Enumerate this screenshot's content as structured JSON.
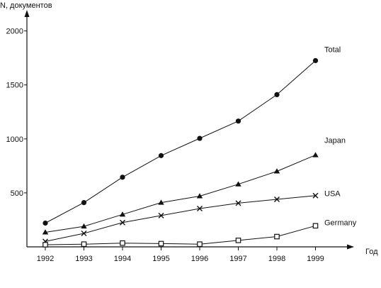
{
  "chart_data": {
    "type": "line",
    "title": "",
    "ylabel": "N, документов",
    "xlabel": "Год",
    "x": [
      "1992",
      "1993",
      "1994",
      "1995",
      "1996",
      "1997",
      "1998",
      "1999"
    ],
    "ylim": [
      0,
      2000
    ],
    "yticks": [
      500,
      1000,
      1500,
      2000
    ],
    "grid": false,
    "legend": "inline labels at right end of each series",
    "series": [
      {
        "name": "Total",
        "marker": "circle",
        "values": [
          220,
          410,
          645,
          845,
          1005,
          1165,
          1410,
          1725
        ]
      },
      {
        "name": "Japan",
        "marker": "triangle",
        "values": [
          135,
          190,
          300,
          410,
          470,
          580,
          700,
          850
        ]
      },
      {
        "name": "USA",
        "marker": "x",
        "values": [
          50,
          125,
          225,
          290,
          355,
          405,
          440,
          475
        ]
      },
      {
        "name": "Germany",
        "marker": "square",
        "values": [
          20,
          25,
          35,
          30,
          25,
          60,
          95,
          195
        ]
      }
    ],
    "colors": {
      "line": "#111111",
      "axis": "#111111"
    }
  }
}
